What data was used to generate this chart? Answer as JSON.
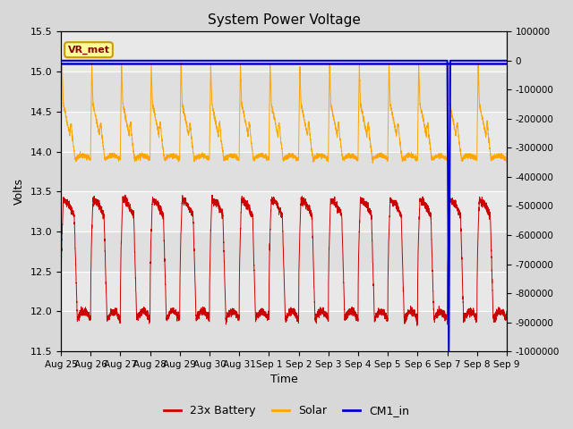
{
  "title": "System Power Voltage",
  "xlabel": "Time",
  "ylabel": "Volts",
  "ylim_left": [
    11.5,
    15.5
  ],
  "ylim_right": [
    -1000000,
    100000
  ],
  "x_tick_labels": [
    "Aug 25",
    "Aug 26",
    "Aug 27",
    "Aug 28",
    "Aug 29",
    "Aug 30",
    "Aug 31",
    "Sep 1",
    "Sep 2",
    "Sep 3",
    "Sep 4",
    "Sep 5",
    "Sep 6",
    "Sep 7",
    "Sep 8",
    "Sep 9"
  ],
  "fig_bg_color": "#d8d8d8",
  "plot_bg_light": "#e8e8e8",
  "plot_bg_dark": "#d0d0d0",
  "battery_color": "#cc0000",
  "solar_color": "#ffa500",
  "cm1_color": "#0000cc",
  "cm1_value": 15.1,
  "vr_met_box_color": "#ffff99",
  "vr_met_text_color": "#8b0000",
  "vr_met_border_color": "#cc9900",
  "legend_items": [
    "23x Battery",
    "Solar",
    "CM1_in"
  ],
  "n_days": 15,
  "yticks_left": [
    11.5,
    12.0,
    12.5,
    13.0,
    13.5,
    14.0,
    14.5,
    15.0,
    15.5
  ],
  "yticks_right": [
    100000,
    0,
    -100000,
    -200000,
    -300000,
    -400000,
    -500000,
    -600000,
    -700000,
    -800000,
    -900000,
    -1000000
  ]
}
